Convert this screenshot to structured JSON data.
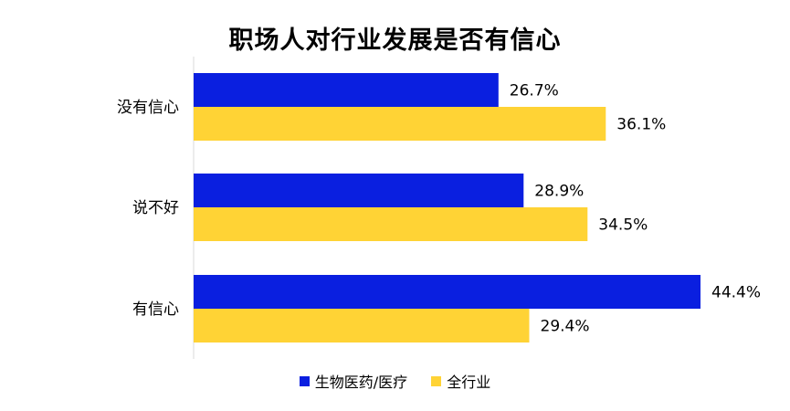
{
  "chart_data": {
    "type": "bar",
    "orientation": "horizontal",
    "title": "职场人对行业发展是否有信心",
    "categories": [
      "没有信心",
      "说不好",
      "有信心"
    ],
    "series": [
      {
        "name": "生物医药/医疗",
        "values": [
          26.7,
          28.9,
          44.4
        ],
        "labels": [
          "26.7%",
          "28.9%",
          "44.4%"
        ],
        "color": "#0A1FE0"
      },
      {
        "name": "全行业",
        "values": [
          36.1,
          34.5,
          29.4
        ],
        "labels": [
          "36.1%",
          "34.5%",
          "29.4%"
        ],
        "color": "#FFD335"
      }
    ],
    "value_unit": "%",
    "xlim": [
      0,
      50
    ],
    "grid": false,
    "legend_position": "bottom"
  }
}
